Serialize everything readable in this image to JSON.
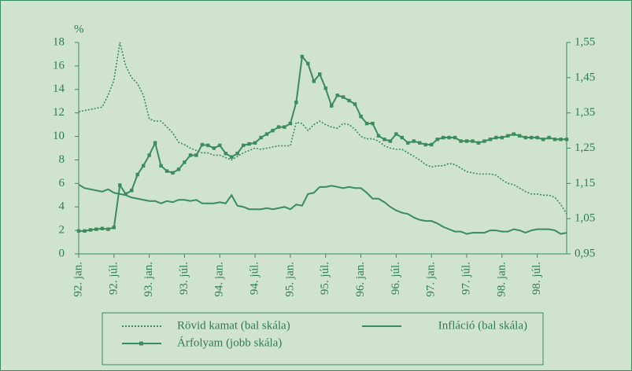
{
  "chart_data": {
    "type": "line",
    "y_label": "%",
    "categories": [
      "92. jan.",
      null,
      null,
      null,
      null,
      null,
      "92. júl.",
      null,
      null,
      null,
      null,
      null,
      "93. jan.",
      null,
      null,
      null,
      null,
      null,
      "93. júl.",
      null,
      null,
      null,
      null,
      null,
      "94. jan.",
      null,
      null,
      null,
      null,
      null,
      "94. júl.",
      null,
      null,
      null,
      null,
      null,
      "95. jan.",
      null,
      null,
      null,
      null,
      null,
      "95. júl.",
      null,
      null,
      null,
      null,
      null,
      "96. jan.",
      null,
      null,
      null,
      null,
      null,
      "96. júl.",
      null,
      null,
      null,
      null,
      null,
      "97. jan.",
      null,
      null,
      null,
      null,
      null,
      "97. júl.",
      null,
      null,
      null,
      null,
      null,
      "98. jan.",
      null,
      null,
      null,
      null,
      null,
      "98. júl.",
      null,
      null,
      null,
      null,
      null
    ],
    "series": [
      {
        "name": "Rövid kamat (bal skála)",
        "color": "#3a8c5c",
        "dash": "dotted",
        "values": [
          12.1,
          12.2,
          12.3,
          12.4,
          12.5,
          13.5,
          14.8,
          18.0,
          16.0,
          15.0,
          14.5,
          13.5,
          11.5,
          11.3,
          11.3,
          10.8,
          10.3,
          9.5,
          9.3,
          9.0,
          8.8,
          8.6,
          8.6,
          8.4,
          8.4,
          8.2,
          8.0,
          8.3,
          8.6,
          8.8,
          9.0,
          8.9,
          9.0,
          9.1,
          9.2,
          9.2,
          9.2,
          11.2,
          11.1,
          10.5,
          11.0,
          11.3,
          11.0,
          10.8,
          10.7,
          11.1,
          11.0,
          10.6,
          10.0,
          9.8,
          9.8,
          9.6,
          9.2,
          9.0,
          8.9,
          8.9,
          8.6,
          8.3,
          8.0,
          7.6,
          7.4,
          7.5,
          7.5,
          7.7,
          7.6,
          7.3,
          7.0,
          6.9,
          6.8,
          6.8,
          6.8,
          6.7,
          6.3,
          6.0,
          5.9,
          5.6,
          5.3,
          5.1,
          5.1,
          5.0,
          5.0,
          4.8,
          4.2,
          3.4
        ]
      },
      {
        "name": "Infláció (bal skála)",
        "color": "#3a8c5c",
        "dash": "solid",
        "values": [
          5.9,
          5.6,
          5.5,
          5.4,
          5.3,
          5.5,
          5.2,
          5.1,
          5.0,
          4.8,
          4.7,
          4.6,
          4.5,
          4.5,
          4.3,
          4.5,
          4.4,
          4.6,
          4.6,
          4.5,
          4.6,
          4.3,
          4.3,
          4.3,
          4.4,
          4.3,
          5.0,
          4.1,
          4.0,
          3.8,
          3.8,
          3.8,
          3.9,
          3.8,
          3.9,
          4.0,
          3.8,
          4.2,
          4.1,
          5.1,
          5.2,
          5.7,
          5.7,
          5.8,
          5.7,
          5.6,
          5.7,
          5.6,
          5.6,
          5.2,
          4.7,
          4.7,
          4.4,
          4.0,
          3.7,
          3.5,
          3.4,
          3.1,
          2.9,
          2.8,
          2.8,
          2.6,
          2.3,
          2.1,
          1.9,
          1.9,
          1.7,
          1.8,
          1.8,
          1.8,
          2.0,
          2.0,
          1.9,
          1.9,
          2.1,
          2.0,
          1.8,
          2.0,
          2.1,
          2.1,
          2.1,
          2.0,
          1.7,
          1.8
        ]
      },
      {
        "name": "Árfolyam (jobb skála)",
        "color": "#3a8c5c",
        "dash": "solid",
        "marker": "square",
        "axis": "y2",
        "values": [
          1.015,
          1.015,
          1.018,
          1.02,
          1.022,
          1.02,
          1.025,
          1.145,
          1.12,
          1.13,
          1.175,
          1.2,
          1.23,
          1.265,
          1.2,
          1.185,
          1.18,
          1.19,
          1.21,
          1.23,
          1.23,
          1.26,
          1.258,
          1.25,
          1.258,
          1.235,
          1.225,
          1.235,
          1.258,
          1.262,
          1.265,
          1.28,
          1.29,
          1.3,
          1.31,
          1.31,
          1.32,
          1.38,
          1.51,
          1.49,
          1.44,
          1.46,
          1.42,
          1.37,
          1.4,
          1.395,
          1.385,
          1.375,
          1.34,
          1.32,
          1.32,
          1.285,
          1.275,
          1.27,
          1.29,
          1.28,
          1.265,
          1.27,
          1.265,
          1.26,
          1.26,
          1.275,
          1.28,
          1.28,
          1.28,
          1.27,
          1.27,
          1.27,
          1.265,
          1.27,
          1.275,
          1.28,
          1.28,
          1.285,
          1.29,
          1.285,
          1.28,
          1.28,
          1.28,
          1.275,
          1.28,
          1.275,
          1.275,
          1.275
        ]
      }
    ],
    "ylim": [
      0,
      18
    ],
    "yticks": [
      0,
      2,
      4,
      6,
      8,
      10,
      12,
      14,
      16,
      18
    ],
    "y2lim": [
      0.95,
      1.55
    ],
    "y2ticks": [
      {
        "value": 0.95,
        "label": "0,95"
      },
      {
        "value": 1.05,
        "label": "1,05"
      },
      {
        "value": 1.15,
        "label": "1,15"
      },
      {
        "value": 1.25,
        "label": "1,25"
      },
      {
        "value": 1.35,
        "label": "1,35"
      },
      {
        "value": 1.45,
        "label": "1,45"
      },
      {
        "value": 1.55,
        "label": "1,55"
      }
    ],
    "legend": "bottom"
  }
}
